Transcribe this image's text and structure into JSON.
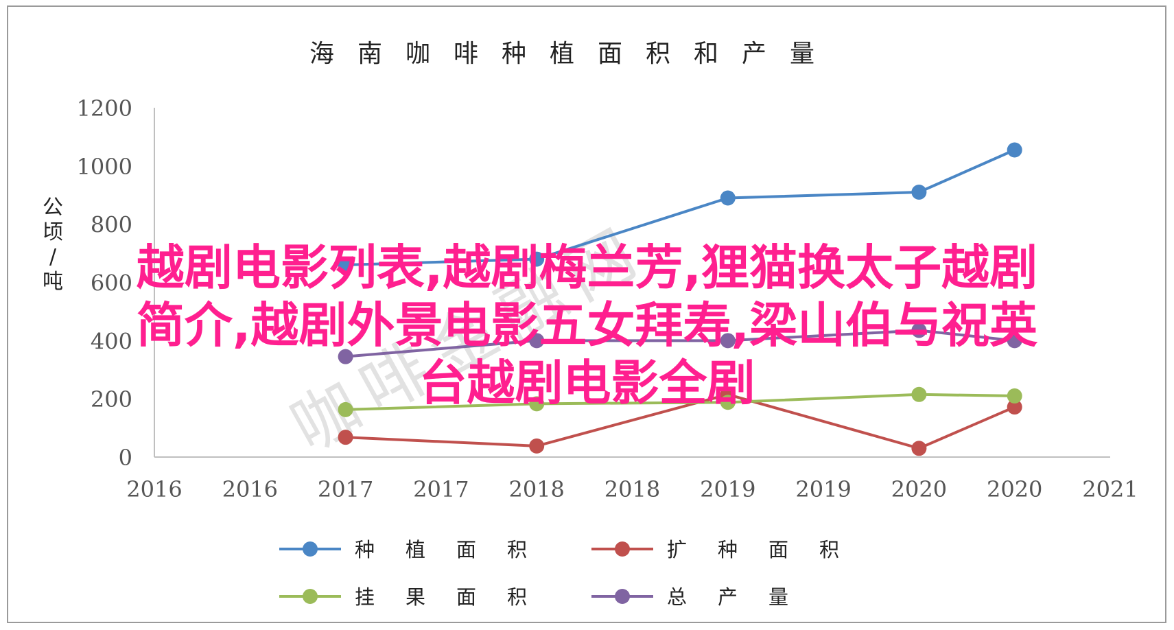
{
  "chart_data": {
    "type": "line",
    "title": "海南咖啡种植面积和产量",
    "ylabel": "公顷/吨",
    "xlabel": "",
    "x_ticks": [
      "2016",
      "2016",
      "2017",
      "2017",
      "2018",
      "2018",
      "2019",
      "2019",
      "2020",
      "2020",
      "2021"
    ],
    "x_positions": [
      1,
      2,
      3,
      4,
      5,
      6,
      7,
      8,
      9
    ],
    "x_point_labels": [
      "2016",
      "2017",
      "2018",
      "2019",
      "2020"
    ],
    "ylim": [
      0,
      1200
    ],
    "y_ticks": [
      0,
      200,
      400,
      600,
      800,
      1000,
      1200
    ],
    "grid": false,
    "legend_position": "bottom",
    "series": [
      {
        "name": "种植面积",
        "color": "#4a86c5",
        "values": [
          660,
          680,
          890,
          910,
          1055
        ]
      },
      {
        "name": "扩种面积",
        "color": "#c0504d",
        "values": [
          68,
          38,
          215,
          30,
          172
        ]
      },
      {
        "name": "挂果面积",
        "color": "#9bbb59",
        "values": [
          163,
          183,
          188,
          215,
          210
        ]
      },
      {
        "name": "总产量",
        "color": "#8064a2",
        "values": [
          345,
          400,
          400,
          435,
          400
        ]
      }
    ]
  },
  "watermark": "咖啡金融网",
  "overlay_text": {
    "line1": "越剧电影列表,越剧梅兰芳,狸猫换太子越剧",
    "line2": "简介,越剧外景电影五女拜寿,梁山伯与祝英",
    "line3": "台越剧电影全剧"
  }
}
